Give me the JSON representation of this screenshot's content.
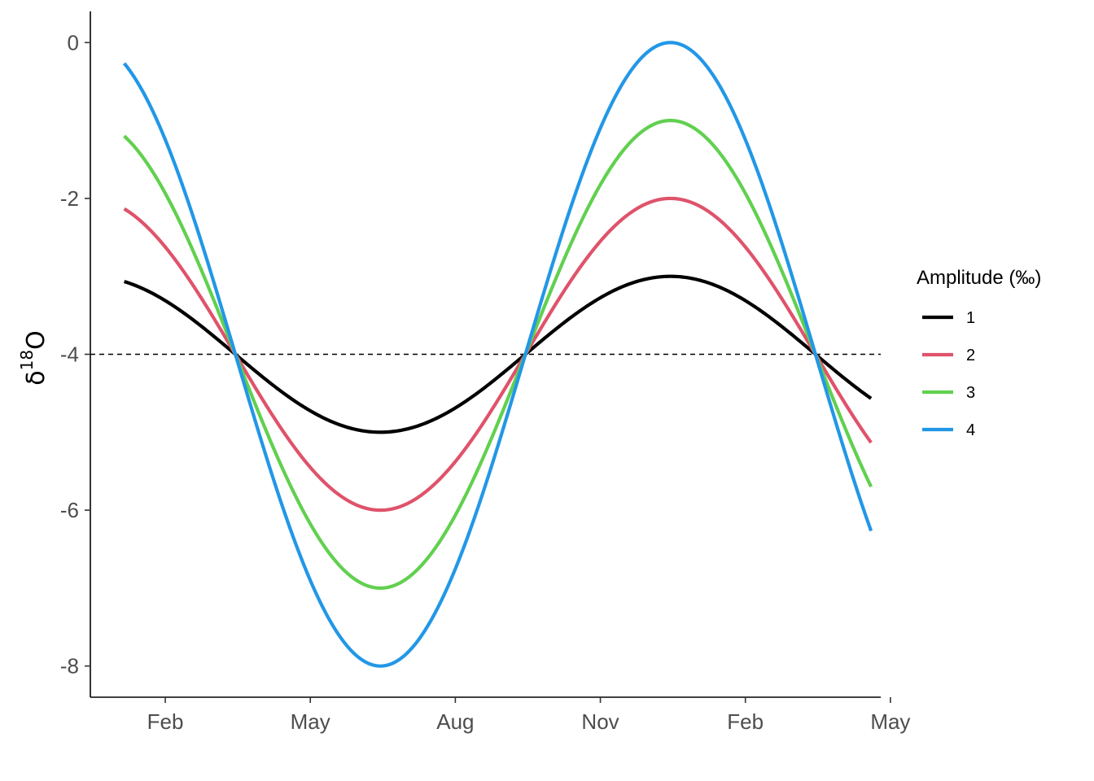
{
  "chart_data": {
    "type": "line",
    "ylabel_symbol": "δ",
    "ylabel_superscript": "18",
    "ylabel_element": "O",
    "xlabel": "",
    "xlim": [
      -0.55,
      15.8
    ],
    "ylim": [
      -8.4,
      0.4
    ],
    "x_ticks": [
      {
        "month_index": 1,
        "label": "Feb"
      },
      {
        "month_index": 4,
        "label": "May"
      },
      {
        "month_index": 7,
        "label": "Aug"
      },
      {
        "month_index": 10,
        "label": "Nov"
      },
      {
        "month_index": 13,
        "label": "Feb"
      },
      {
        "month_index": 16,
        "label": "May"
      }
    ],
    "y_ticks": [
      0,
      -2,
      -4,
      -6,
      -8
    ],
    "baseline": {
      "y": -4,
      "style": "dashed",
      "color": "#000000"
    },
    "x_start": 0.15,
    "x_end": 15.6,
    "period_months": 12,
    "mean": -4,
    "trough_month_index": 5.45,
    "legend": {
      "title": "Amplitude (‰)",
      "position": "right"
    },
    "series": [
      {
        "name": "1",
        "amplitude": 1,
        "color": "#000000"
      },
      {
        "name": "2",
        "amplitude": 2,
        "color": "#DF536B"
      },
      {
        "name": "3",
        "amplitude": 3,
        "color": "#61D04F"
      },
      {
        "name": "4",
        "amplitude": 4,
        "color": "#2297E6"
      }
    ]
  }
}
